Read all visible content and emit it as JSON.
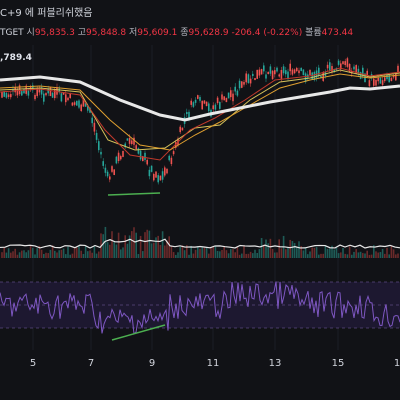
{
  "header": {
    "text": "C+9 에 퍼블리쉬했음"
  },
  "ohlc": {
    "symbol": "TGET",
    "open_label": "시",
    "open": "95,835.3",
    "high_label": "고",
    "high": "95,848.8",
    "low_label": "저",
    "low": "95,609.1",
    "close_label": "종",
    "close": "95,628.9",
    "change": "-206.4 (-0.22%)",
    "volume_label": "볼륨",
    "volume": "473.44"
  },
  "price_tag": ",789.4",
  "colors": {
    "background": "#111216",
    "up": "#26a69a",
    "down": "#ef5350",
    "ma_long": "#e8e8e8",
    "ma_orange": "#e0a030",
    "ma_red": "#c0392b",
    "ma_yellow": "#d4c15a",
    "rsi_line": "#7e57c2",
    "trendline_green": "#4caf50"
  },
  "x_axis": {
    "ticks": [
      "5",
      "7",
      "9",
      "11",
      "13",
      "15",
      "1"
    ]
  }
}
